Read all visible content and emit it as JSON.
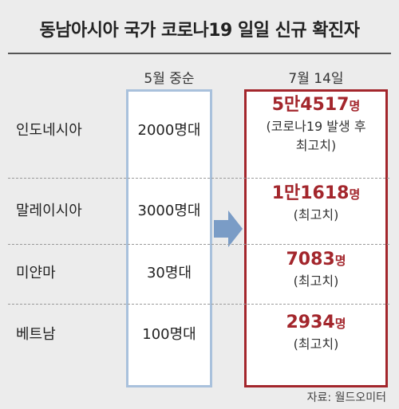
{
  "title": "동남아시아 국가 코로나19 일일 신규 확진자",
  "columns": {
    "may": "5월 중순",
    "july": "7월 14일"
  },
  "rows": [
    {
      "country": "인도네시아",
      "may": "2000명대",
      "july_value": "5만4517",
      "july_unit": "명",
      "july_note_1": "(코로나19 발생 후",
      "july_note_2": "최고치)"
    },
    {
      "country": "말레이시아",
      "may": "3000명대",
      "july_value": "1만1618",
      "july_unit": "명",
      "july_note_1": "(최고치)",
      "july_note_2": ""
    },
    {
      "country": "미얀마",
      "may": "30명대",
      "july_value": "7083",
      "july_unit": "명",
      "july_note_1": "(최고치)",
      "july_note_2": ""
    },
    {
      "country": "베트남",
      "may": "100명대",
      "july_value": "2934",
      "july_unit": "명",
      "july_note_1": "(최고치)",
      "july_note_2": ""
    }
  ],
  "source": "자료: 월드오미터",
  "colors": {
    "accent_red": "#a3262c",
    "may_border": "#a9c1dc",
    "arrow": "#7a9cc6"
  },
  "chart_data": {
    "type": "table",
    "title": "동남아시아 국가 코로나19 일일 신규 확진자",
    "columns": [
      "5월 중순",
      "7월 14일"
    ],
    "categories": [
      "인도네시아",
      "말레이시아",
      "미얀마",
      "베트남"
    ],
    "series": [
      {
        "name": "5월 중순",
        "values": [
          "2000명대",
          "3000명대",
          "30명대",
          "100명대"
        ]
      },
      {
        "name": "7월 14일",
        "values": [
          54517,
          11618,
          7083,
          2934
        ]
      }
    ]
  }
}
